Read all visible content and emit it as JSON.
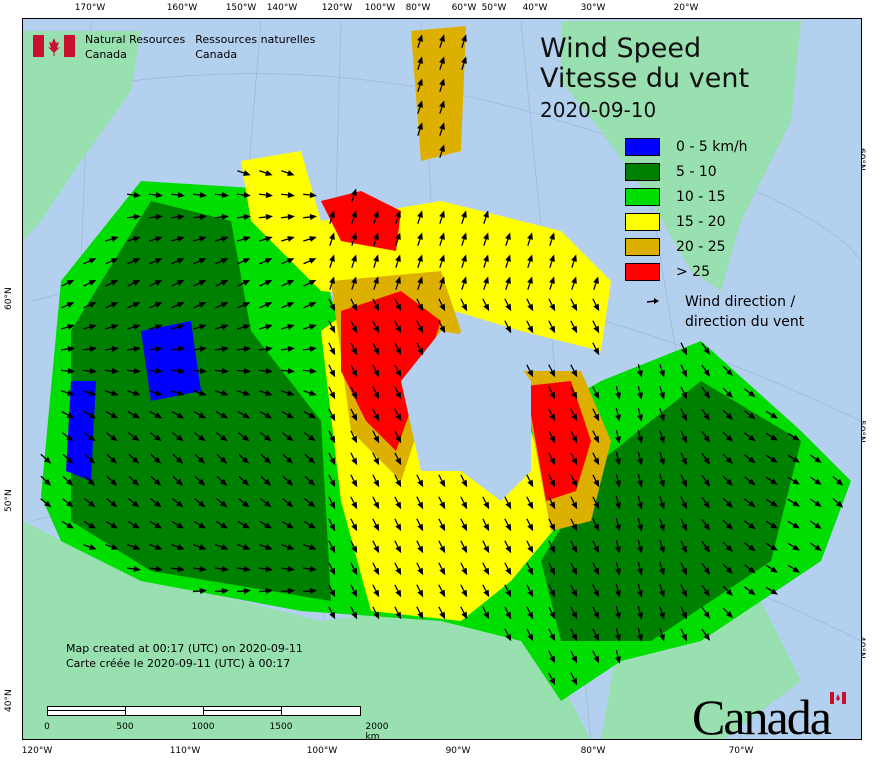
{
  "header": {
    "agency_en": "Natural Resources",
    "agency_en2": "Canada",
    "agency_fr": "Ressources naturelles",
    "agency_fr2": "Canada"
  },
  "title": {
    "line1": "Wind Speed",
    "line2": "Vitesse du vent",
    "date": "2020-09-10"
  },
  "legend": {
    "items": [
      {
        "label": "0 - 5 km/h",
        "color": "#0000ff"
      },
      {
        "label": "5 - 10",
        "color": "#008000"
      },
      {
        "label": "10 - 15",
        "color": "#00dd00"
      },
      {
        "label": "15 - 20",
        "color": "#ffff00"
      },
      {
        "label": "20 - 25",
        "color": "#ddb000"
      },
      {
        "label": "> 25",
        "color": "#ff0000"
      }
    ],
    "arrow_label1": "Wind direction /",
    "arrow_label2": "direction du vent"
  },
  "credit": {
    "line1": "Map created at 00:17 (UTC) on 2020-09-11",
    "line2": "Carte créée le 2020-09-11 (UTC) à 00:17"
  },
  "scale": {
    "labels": [
      "0",
      "500",
      "1000",
      "1500",
      "2000 km"
    ]
  },
  "axes": {
    "top": [
      "170°W",
      "160°W",
      "150°W",
      "140°W",
      "120°W",
      "100°W",
      "80°W",
      "60°W",
      "50°W",
      "40°W",
      "30°W",
      "20°W"
    ],
    "bottom": [
      "120°W",
      "110°W",
      "100°W",
      "90°W",
      "80°W",
      "70°W"
    ],
    "left": [
      "60°N",
      "50°N",
      "40°N"
    ],
    "right": [
      "60°N",
      "50°N",
      "40°N"
    ]
  },
  "wordmark": "Canada",
  "colors": {
    "ocean": "#b3d0ef",
    "land": "#98e0b0",
    "flag": "#c8102e"
  }
}
